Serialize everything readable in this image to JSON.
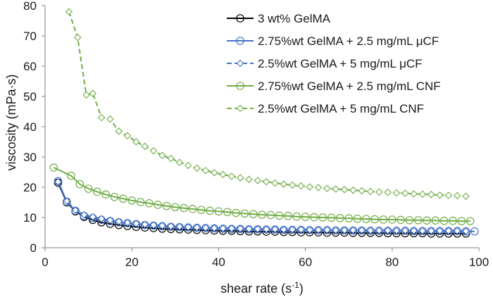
{
  "chart_data": {
    "type": "line",
    "xlabel": "shear rate (s",
    "xlabel_sup": "-1",
    "xlabel_end": ")",
    "ylabel": "viscosity (mPa·s)",
    "xlim": [
      0,
      100
    ],
    "ylim": [
      0,
      80
    ],
    "x_ticks": [
      "0",
      "20",
      "40",
      "60",
      "80",
      "100"
    ],
    "y_ticks": [
      "0",
      "10",
      "20",
      "30",
      "40",
      "50",
      "60",
      "70",
      "80"
    ],
    "grid": false,
    "legend_position": "top-right",
    "series": [
      {
        "name": "3 wt% GelMA",
        "color": "#000000",
        "marker": "circle",
        "dashed": false,
        "x": [
          3,
          5,
          7,
          9,
          11,
          13,
          15,
          17,
          19,
          21,
          23,
          25,
          27,
          29,
          31,
          33,
          35,
          37,
          39,
          41,
          43,
          45,
          47,
          49,
          51,
          53,
          55,
          57,
          59,
          61,
          63,
          65,
          67,
          69,
          71,
          73,
          75,
          77,
          79,
          81,
          83,
          85,
          87,
          89,
          91,
          93,
          95,
          97
        ],
        "y": [
          21.5,
          15,
          12,
          10.2,
          9.2,
          8.4,
          7.9,
          7.5,
          7.2,
          6.9,
          6.7,
          6.5,
          6.3,
          6.2,
          6.1,
          6.0,
          5.9,
          5.8,
          5.7,
          5.6,
          5.6,
          5.5,
          5.4,
          5.4,
          5.3,
          5.3,
          5.2,
          5.2,
          5.1,
          5.1,
          5.1,
          5.0,
          5.0,
          5.0,
          4.9,
          4.9,
          4.9,
          4.9,
          4.8,
          4.8,
          4.8,
          4.8,
          4.8,
          4.7,
          4.7,
          4.7,
          4.7,
          4.7
        ]
      },
      {
        "name": "2.75%wt GelMA + 2.5 mg/mL μCF",
        "color": "#4472c4",
        "marker": "circle",
        "dashed": false,
        "x": [
          3,
          5,
          7,
          9,
          11,
          13,
          15,
          17,
          19,
          21,
          23,
          25,
          27,
          29,
          31,
          33,
          35,
          37,
          39,
          41,
          43,
          45,
          47,
          49,
          51,
          53,
          55,
          57,
          59,
          61,
          63,
          65,
          67,
          69,
          71,
          73,
          75,
          77,
          79,
          81,
          83,
          85,
          87,
          89,
          91,
          93,
          95,
          97,
          99
        ],
        "y": [
          22,
          15.2,
          12.2,
          10.5,
          9.8,
          9.2,
          8.8,
          8.4,
          8.1,
          7.8,
          7.5,
          7.3,
          7.1,
          6.9,
          6.8,
          6.7,
          6.6,
          6.5,
          6.4,
          6.3,
          6.2,
          6.2,
          6.1,
          6.1,
          6.0,
          6.0,
          5.9,
          5.9,
          5.9,
          5.8,
          5.8,
          5.8,
          5.7,
          5.7,
          5.7,
          5.7,
          5.6,
          5.6,
          5.6,
          5.6,
          5.6,
          5.5,
          5.5,
          5.5,
          5.5,
          5.5,
          5.5,
          5.4,
          5.4
        ]
      },
      {
        "name": "2.5%wt GelMA + 5 mg/mL μCF",
        "color": "#4472c4",
        "marker": "diamond",
        "dashed": true,
        "x": [
          3,
          5,
          7,
          9,
          11,
          13,
          15,
          17,
          19,
          21,
          23,
          25,
          27,
          29,
          31,
          33,
          35,
          37,
          39,
          41,
          43,
          45,
          47,
          49,
          51,
          53,
          55,
          57,
          59,
          61,
          63,
          65,
          67,
          69,
          71,
          73,
          75,
          77,
          79,
          81,
          83,
          85,
          87,
          89,
          91,
          93,
          95,
          97
        ],
        "y": [
          21.8,
          15.4,
          12.4,
          10.9,
          10.2,
          9.6,
          9.1,
          8.7,
          8.3,
          8.0,
          7.7,
          7.5,
          7.3,
          7.1,
          7.0,
          6.8,
          6.7,
          6.6,
          6.5,
          6.4,
          6.4,
          6.3,
          6.2,
          6.2,
          6.1,
          6.1,
          6.0,
          6.0,
          6.0,
          5.9,
          5.9,
          5.9,
          5.8,
          5.8,
          5.8,
          5.8,
          5.7,
          5.7,
          5.7,
          5.7,
          5.7,
          5.6,
          5.6,
          5.6,
          5.6,
          5.6,
          5.6,
          5.5
        ]
      },
      {
        "name": "2.75%wt GelMA + 2.5 mg/mL CNF",
        "color": "#70ad47",
        "marker": "circle",
        "dashed": false,
        "x": [
          2,
          6,
          8,
          10,
          12,
          14,
          16,
          18,
          20,
          22,
          24,
          26,
          28,
          30,
          32,
          34,
          36,
          38,
          40,
          42,
          44,
          46,
          48,
          50,
          52,
          54,
          56,
          58,
          60,
          62,
          64,
          66,
          68,
          70,
          72,
          74,
          76,
          78,
          80,
          82,
          84,
          86,
          88,
          90,
          92,
          94,
          96,
          98
        ],
        "y": [
          26.5,
          23.8,
          21,
          19.5,
          18.5,
          17.6,
          16.8,
          16.2,
          15.6,
          15.1,
          14.7,
          14.2,
          13.8,
          13.4,
          13.1,
          12.8,
          12.5,
          12.2,
          12.0,
          11.8,
          11.5,
          11.3,
          11.1,
          10.9,
          10.8,
          10.6,
          10.5,
          10.3,
          10.2,
          10.1,
          10.0,
          9.9,
          9.8,
          9.7,
          9.6,
          9.5,
          9.4,
          9.3,
          9.3,
          9.2,
          9.1,
          9.1,
          9.0,
          9.0,
          8.9,
          8.9,
          8.8,
          8.8
        ]
      },
      {
        "name": "2.5%wt GelMA + 5 mg/mL CNF",
        "color": "#70ad47",
        "marker": "diamond",
        "dashed": true,
        "x": [
          5.5,
          7.5,
          9.5,
          11,
          13,
          15,
          17,
          19,
          21,
          23,
          25,
          27,
          29,
          31,
          33,
          35,
          37,
          39,
          41,
          43,
          45,
          47,
          49,
          51,
          53,
          55,
          57,
          59,
          61,
          63,
          65,
          67,
          69,
          71,
          73,
          75,
          77,
          79,
          81,
          83,
          85,
          87,
          89,
          91,
          93,
          95,
          97
        ],
        "y": [
          78,
          69.5,
          50.5,
          51,
          43,
          42.5,
          38.5,
          37,
          35,
          33.5,
          32,
          30.5,
          29.5,
          28.2,
          27.2,
          26.3,
          25.5,
          24.8,
          24.2,
          23.6,
          23.1,
          22.6,
          22.2,
          21.8,
          21.4,
          21.0,
          20.7,
          20.4,
          20.1,
          19.9,
          19.6,
          19.4,
          19.2,
          19.0,
          18.8,
          18.6,
          18.4,
          18.3,
          18.1,
          18.0,
          17.8,
          17.7,
          17.6,
          17.4,
          17.3,
          17.2,
          17.0
        ]
      }
    ]
  }
}
